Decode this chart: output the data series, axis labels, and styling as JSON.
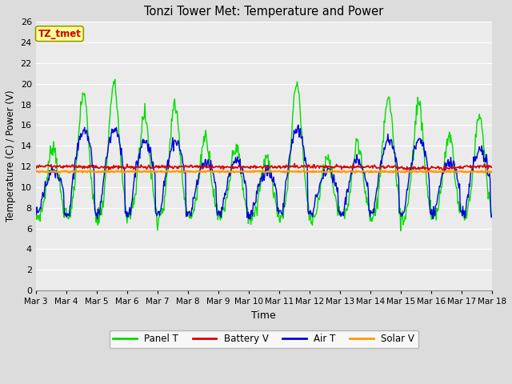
{
  "title": "Tonzi Tower Met: Temperature and Power",
  "xlabel": "Time",
  "ylabel": "Temperature (C) / Power (V)",
  "ylim": [
    0,
    26
  ],
  "yticks": [
    0,
    2,
    4,
    6,
    8,
    10,
    12,
    14,
    16,
    18,
    20,
    22,
    24,
    26
  ],
  "xtick_labels": [
    "Mar 3",
    "Mar 4",
    "Mar 5",
    "Mar 6",
    "Mar 7",
    "Mar 8",
    "Mar 9",
    "Mar 10",
    "Mar 11",
    "Mar 12",
    "Mar 13",
    "Mar 14",
    "Mar 15",
    "Mar 16",
    "Mar 17",
    "Mar 18"
  ],
  "panel_t_color": "#00DD00",
  "battery_v_color": "#DD0000",
  "air_t_color": "#0000DD",
  "solar_v_color": "#FF9900",
  "background_color": "#DCDCDC",
  "plot_bg_color": "#EBEBEB",
  "annotation_box_facecolor": "#FFFF99",
  "annotation_box_edgecolor": "#999900",
  "annotation_text_color": "#CC0000",
  "annotation_text": "TZ_tmet",
  "legend_entries": [
    "Panel T",
    "Battery V",
    "Air T",
    "Solar V"
  ],
  "n_days": 15,
  "samples_per_day": 48,
  "battery_v_base": 11.95,
  "solar_v_base": 11.5,
  "grid_color": "#FFFFFF"
}
